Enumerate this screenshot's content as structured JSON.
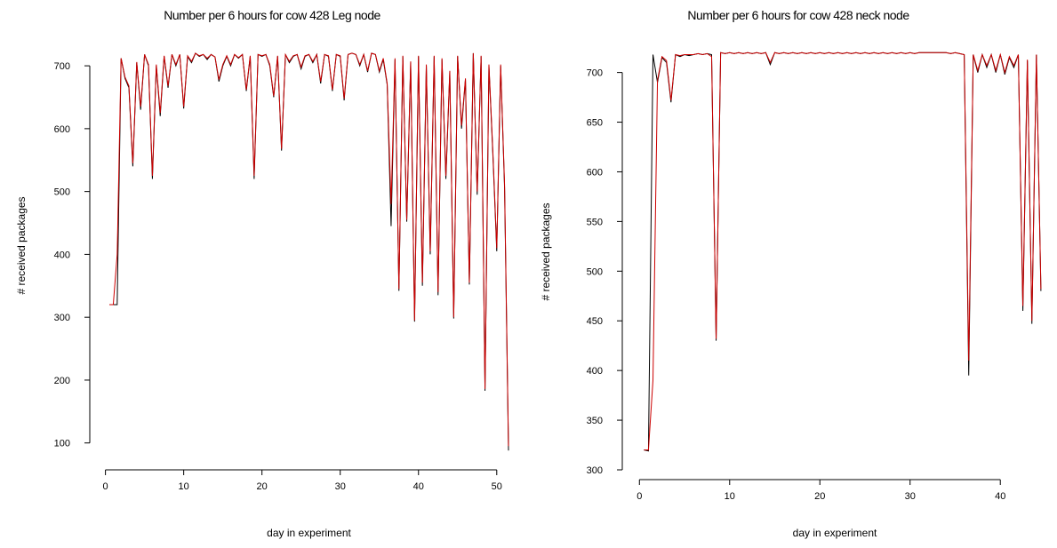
{
  "chart_data": [
    {
      "type": "line",
      "title": "Number per 6 hours for cow 428 Leg node",
      "xlabel": "day in experiment",
      "ylabel": "# received packages",
      "xlim": [
        -2,
        54
      ],
      "ylim": [
        77,
        751
      ],
      "xticks": [
        0,
        10,
        20,
        30,
        40,
        50
      ],
      "yticks": [
        100,
        200,
        300,
        400,
        500,
        600,
        700
      ],
      "x": [
        0.5,
        1,
        1.5,
        2,
        2.5,
        3,
        3.5,
        4,
        4.5,
        5,
        5.5,
        6,
        6.5,
        7,
        7.5,
        8,
        8.5,
        9,
        9.5,
        10,
        10.5,
        11,
        11.5,
        12,
        12.5,
        13,
        13.5,
        14,
        14.5,
        15,
        15.5,
        16,
        16.5,
        17,
        17.5,
        18,
        18.5,
        19,
        19.5,
        20,
        20.5,
        21,
        21.5,
        22,
        22.5,
        23,
        23.5,
        24,
        24.5,
        25,
        25.5,
        26,
        26.5,
        27,
        27.5,
        28,
        28.5,
        29,
        29.5,
        30,
        30.5,
        31,
        31.5,
        32,
        32.5,
        33,
        33.5,
        34,
        34.5,
        35,
        35.5,
        36,
        36.5,
        37,
        37.5,
        38,
        38.5,
        39,
        39.5,
        40,
        40.5,
        41,
        41.5,
        42,
        42.5,
        43,
        43.5,
        44,
        44.5,
        45,
        45.5,
        46,
        46.5,
        47,
        47.5,
        48,
        48.5,
        49,
        49.5,
        50,
        50.5,
        51,
        51.5
      ],
      "series": [
        {
          "color": "#000000",
          "values": [
            320,
            320,
            320,
            712,
            680,
            665,
            540,
            705,
            630,
            718,
            700,
            520,
            700,
            620,
            715,
            665,
            718,
            700,
            718,
            632,
            715,
            705,
            720,
            715,
            718,
            710,
            718,
            714,
            675,
            700,
            715,
            700,
            718,
            712,
            718,
            660,
            715,
            520,
            718,
            715,
            718,
            700,
            650,
            715,
            565,
            718,
            705,
            715,
            718,
            695,
            715,
            718,
            705,
            718,
            672,
            718,
            715,
            660,
            718,
            715,
            645,
            718,
            720,
            718,
            700,
            718,
            690,
            720,
            718,
            690,
            710,
            670,
            445,
            710,
            342,
            715,
            452,
            705,
            293,
            715,
            350,
            700,
            400,
            715,
            335,
            710,
            520,
            690,
            298,
            715,
            600,
            678,
            352,
            720,
            495,
            715,
            183,
            700,
            560,
            405,
            700,
            505,
            88
          ]
        },
        {
          "color": "#cc0000",
          "values": [
            320,
            320,
            400,
            712,
            682,
            668,
            545,
            706,
            635,
            718,
            702,
            525,
            702,
            625,
            716,
            668,
            718,
            702,
            718,
            635,
            716,
            707,
            720,
            716,
            718,
            712,
            718,
            714,
            678,
            702,
            716,
            702,
            718,
            713,
            718,
            662,
            716,
            525,
            718,
            716,
            718,
            702,
            652,
            716,
            568,
            718,
            707,
            716,
            718,
            698,
            716,
            718,
            707,
            718,
            675,
            718,
            716,
            662,
            718,
            716,
            648,
            718,
            720,
            718,
            702,
            718,
            692,
            720,
            718,
            692,
            712,
            672,
            480,
            712,
            345,
            716,
            455,
            707,
            295,
            716,
            355,
            702,
            405,
            716,
            340,
            712,
            525,
            692,
            300,
            716,
            605,
            680,
            355,
            720,
            500,
            716,
            186,
            702,
            565,
            410,
            702,
            510,
            95
          ]
        }
      ]
    },
    {
      "type": "line",
      "title": "Number per 6 hours for cow 428 neck node",
      "xlabel": "day in experiment",
      "ylabel": "# received packages",
      "xlim": [
        -1.9,
        45.2
      ],
      "ylim": [
        300,
        739
      ],
      "xticks": [
        0,
        10,
        20,
        30,
        40
      ],
      "yticks": [
        300,
        350,
        400,
        450,
        500,
        550,
        600,
        650,
        700
      ],
      "x": [
        0.5,
        1,
        1.5,
        2,
        2.5,
        3,
        3.5,
        4,
        4.5,
        5,
        5.5,
        6,
        6.5,
        7,
        7.5,
        8,
        8.5,
        9,
        9.5,
        10,
        10.5,
        11,
        11.5,
        12,
        12.5,
        13,
        13.5,
        14,
        14.5,
        15,
        15.5,
        16,
        16.5,
        17,
        17.5,
        18,
        18.5,
        19,
        19.5,
        20,
        20.5,
        21,
        21.5,
        22,
        22.5,
        23,
        23.5,
        24,
        24.5,
        25,
        25.5,
        26,
        26.5,
        27,
        27.5,
        28,
        28.5,
        29,
        29.5,
        30,
        30.5,
        31,
        31.5,
        32,
        32.5,
        33,
        33.5,
        34,
        34.5,
        35,
        35.5,
        36,
        36.5,
        37,
        37.5,
        38,
        38.5,
        39,
        39.5,
        40,
        40.5,
        41,
        41.5,
        42,
        42.5,
        43,
        43.5,
        44,
        44.5
      ],
      "series": [
        {
          "color": "#000000",
          "values": [
            320,
            319,
            718,
            690,
            715,
            710,
            670,
            718,
            716,
            718,
            717,
            718,
            719,
            718,
            719,
            718,
            430,
            720,
            719,
            720,
            719,
            720,
            719,
            720,
            719,
            720,
            719,
            720,
            708,
            720,
            719,
            720,
            719,
            720,
            719,
            720,
            719,
            720,
            719,
            720,
            719,
            720,
            719,
            720,
            719,
            720,
            719,
            720,
            719,
            720,
            719,
            720,
            719,
            720,
            719,
            720,
            719,
            720,
            719,
            720,
            719,
            720,
            720,
            720,
            720,
            720,
            720,
            720,
            719,
            720,
            719,
            718,
            395,
            718,
            700,
            718,
            705,
            718,
            700,
            718,
            698,
            715,
            705,
            718,
            460,
            712,
            447,
            718,
            480
          ]
        },
        {
          "color": "#cc0000",
          "values": [
            320,
            320,
            390,
            692,
            716,
            712,
            672,
            718,
            717,
            718,
            718,
            718,
            719,
            718,
            719,
            716,
            432,
            720,
            719,
            720,
            719,
            720,
            719,
            720,
            719,
            720,
            719,
            720,
            710,
            720,
            719,
            720,
            719,
            720,
            719,
            720,
            719,
            720,
            719,
            720,
            719,
            720,
            719,
            720,
            719,
            720,
            719,
            720,
            719,
            720,
            719,
            720,
            719,
            720,
            719,
            720,
            719,
            720,
            719,
            720,
            719,
            720,
            720,
            720,
            720,
            720,
            720,
            720,
            719,
            720,
            719,
            718,
            410,
            718,
            702,
            718,
            707,
            718,
            702,
            718,
            700,
            716,
            707,
            718,
            465,
            713,
            450,
            718,
            482
          ]
        }
      ]
    }
  ]
}
